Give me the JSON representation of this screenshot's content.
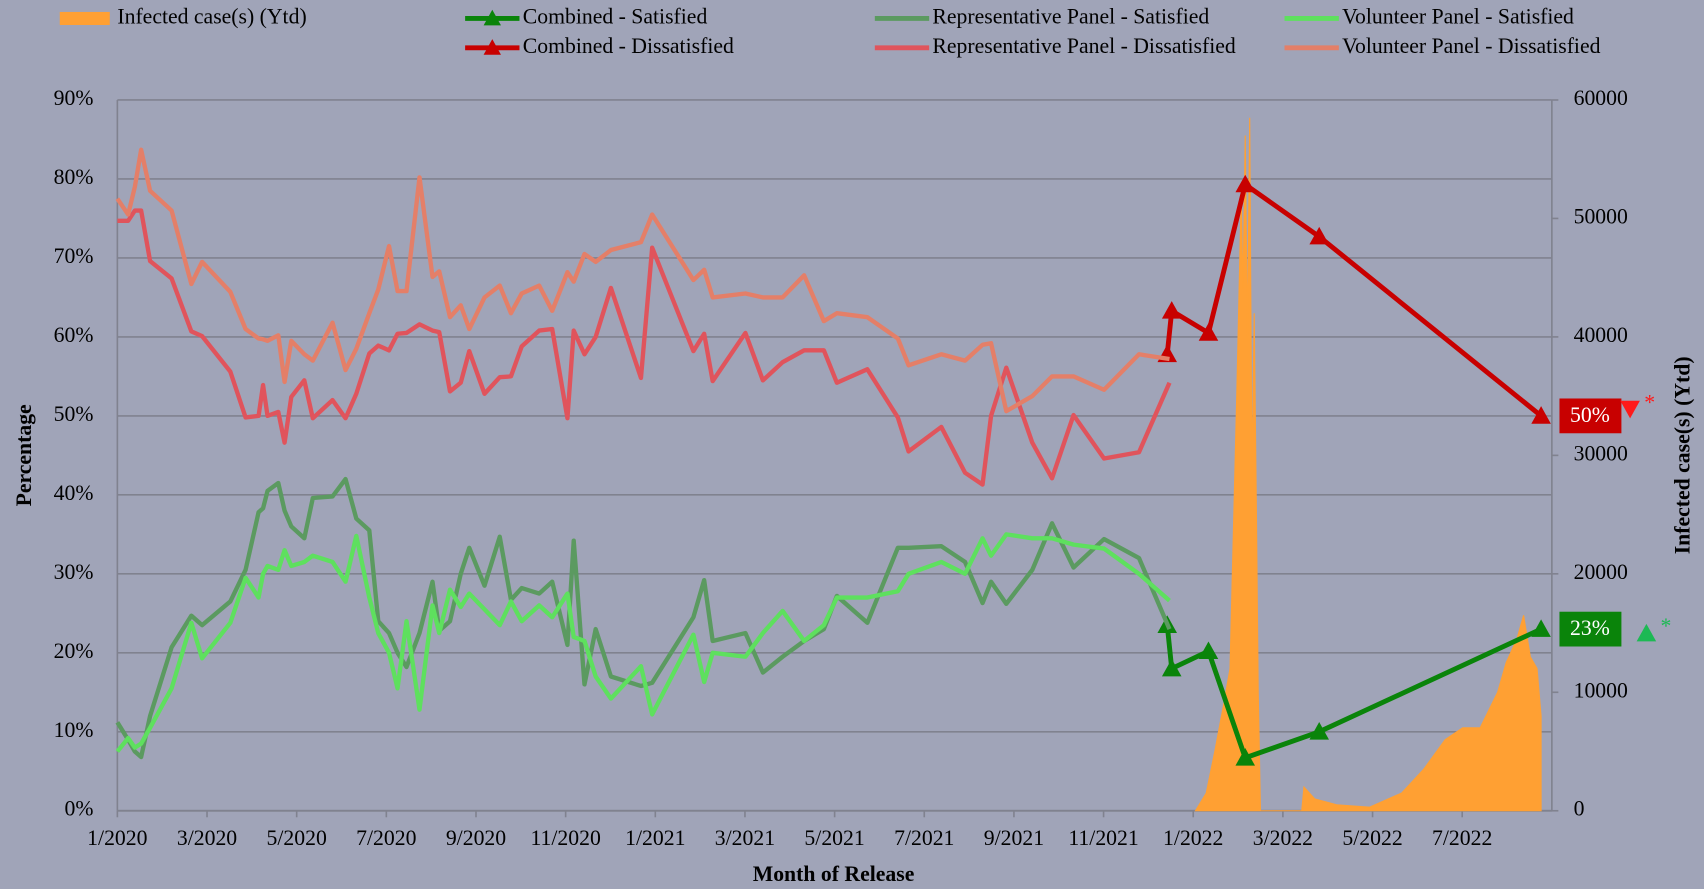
{
  "chart_data": {
    "type": "combo",
    "x_label": "Month of Release",
    "y_label": "Percentage",
    "y2_label": "Infected case(s) (Ytd)",
    "grid": true,
    "xlim": [
      0,
      32
    ],
    "xticks": [
      {
        "value": 0,
        "label": "1/2020"
      },
      {
        "value": 2,
        "label": "3/2020"
      },
      {
        "value": 4,
        "label": "5/2020"
      },
      {
        "value": 6,
        "label": "7/2020"
      },
      {
        "value": 8,
        "label": "9/2020"
      },
      {
        "value": 10,
        "label": "11/2020"
      },
      {
        "value": 12,
        "label": "1/2021"
      },
      {
        "value": 14,
        "label": "3/2021"
      },
      {
        "value": 16,
        "label": "5/2021"
      },
      {
        "value": 18,
        "label": "7/2021"
      },
      {
        "value": 20,
        "label": "9/2021"
      },
      {
        "value": 22,
        "label": "11/2021"
      },
      {
        "value": 24,
        "label": "1/2022"
      },
      {
        "value": 26,
        "label": "3/2022"
      },
      {
        "value": 28,
        "label": "5/2022"
      },
      {
        "value": 30,
        "label": "7/2022"
      }
    ],
    "ylim": [
      0,
      90
    ],
    "yticks": [
      {
        "value": 0,
        "label": "0%"
      },
      {
        "value": 10,
        "label": "10%"
      },
      {
        "value": 20,
        "label": "20%"
      },
      {
        "value": 30,
        "label": "30%"
      },
      {
        "value": 40,
        "label": "40%"
      },
      {
        "value": 50,
        "label": "50%"
      },
      {
        "value": 60,
        "label": "60%"
      },
      {
        "value": 70,
        "label": "70%"
      },
      {
        "value": 80,
        "label": "80%"
      },
      {
        "value": 90,
        "label": "90%"
      }
    ],
    "y2lim": [
      0,
      60000
    ],
    "y2ticks": [
      0,
      10000,
      20000,
      30000,
      40000,
      50000,
      60000
    ],
    "x": [
      0,
      0.24,
      0.39,
      0.53,
      0.73,
      1.21,
      1.65,
      1.89,
      2.52,
      2.86,
      3.15,
      3.25,
      3.35,
      3.59,
      3.73,
      3.88,
      4.17,
      4.36,
      4.8,
      5.09,
      5.33,
      5.62,
      5.82,
      6.06,
      6.25,
      6.45,
      6.74,
      7.03,
      7.18,
      7.42,
      7.66,
      7.85,
      8.19,
      8.53,
      8.78,
      9.02,
      9.41,
      9.7,
      10.04,
      10.18,
      10.42,
      10.67,
      11.01,
      11.68,
      11.93,
      12.85,
      13.09,
      13.28,
      14.01,
      14.4,
      14.84,
      15.32,
      15.76,
      16.05,
      16.73,
      17.41,
      17.65,
      18.38,
      18.91,
      19.3,
      19.49,
      19.83,
      20.41,
      20.85,
      21.33,
      22.01,
      22.79,
      23.47
    ],
    "series": [
      {
        "name": "Infected case(s) (Ytd)",
        "type": "area",
        "axis": "y2",
        "color": "#ffa033",
        "x": [
          24.05,
          24.29,
          24.48,
          24.68,
          24.82,
          24.97,
          25.07,
          25.11,
          25.16,
          25.21,
          25.26,
          25.31,
          25.36,
          25.41,
          25.45,
          25.5,
          26.42,
          26.47,
          26.71,
          27.2,
          27.93,
          28.65,
          29.14,
          29.62,
          30.01,
          30.4,
          30.79,
          30.98,
          31.22,
          31.37,
          31.52,
          31.67,
          31.76
        ],
        "values": [
          0,
          1500,
          5000,
          9000,
          12000,
          35000,
          52000,
          44000,
          57000,
          40000,
          58500,
          28000,
          42000,
          25000,
          10000,
          0,
          0,
          2000,
          1000,
          500,
          300,
          1500,
          3500,
          6000,
          7000,
          7000,
          10000,
          12500,
          14500,
          16500,
          13000,
          12000,
          8000
        ]
      },
      {
        "name": "Combined - Satisfied",
        "type": "line",
        "marker": "triangle",
        "color": "#0a840a",
        "x": [
          23.42,
          23.52,
          24.34,
          25.16,
          26.81,
          31.76
        ],
        "values": [
          23.5,
          18,
          20.2,
          6.7,
          10,
          23
        ],
        "value_labels": [
          null,
          null,
          null,
          null,
          null,
          "23%"
        ]
      },
      {
        "name": "Representative Panel - Satisfied",
        "type": "line",
        "color": "#5b9a60",
        "values": [
          11.2,
          9,
          7.5,
          6.8,
          12,
          20.7,
          24.7,
          23.5,
          26.5,
          30.5,
          37.8,
          38.3,
          40.5,
          41.5,
          38,
          36,
          34.5,
          39.6,
          39.8,
          42,
          37,
          35.5,
          24,
          22.5,
          20,
          18.2,
          22.5,
          29,
          22.8,
          24,
          30,
          33.3,
          28.5,
          34.7,
          26.7,
          28.2,
          27.5,
          29,
          21,
          34.2,
          16,
          23,
          17,
          15.8,
          16.2,
          24.5,
          29.2,
          21.5,
          22.5,
          17.5,
          19.5,
          21.5,
          23,
          27.2,
          23.8,
          33.3,
          33.3,
          33.5,
          31.5,
          26.3,
          29,
          26.2,
          30.5,
          36.4,
          30.8,
          34.4,
          32,
          23
        ]
      },
      {
        "name": "Volunteer Panel - Satisfied",
        "type": "line",
        "color": "#5ee05e",
        "values": [
          7.5,
          9.2,
          8,
          8.5,
          10.5,
          15.5,
          23.8,
          19.3,
          23.8,
          29.5,
          27,
          30,
          31,
          30.5,
          33,
          31,
          31.5,
          32.3,
          31.5,
          29,
          34.8,
          27,
          22.5,
          20,
          15.5,
          24,
          12.8,
          26,
          22.5,
          28,
          25.8,
          27.5,
          25.5,
          23.5,
          26.5,
          24,
          26,
          24.5,
          27.5,
          22,
          21.5,
          17,
          14.2,
          18.3,
          12.2,
          22.3,
          16.3,
          20,
          19.5,
          22.5,
          25.3,
          21.5,
          23.5,
          27,
          27,
          27.8,
          30,
          31.5,
          30,
          34.5,
          32.3,
          35,
          34.5,
          34.5,
          33.7,
          33.2,
          30,
          26.6
        ]
      },
      {
        "name": "Combined - Dissatisfied",
        "type": "line",
        "marker": "triangle",
        "color": "#c80000",
        "x": [
          23.42,
          23.52,
          24.34,
          25.16,
          26.81,
          31.76
        ],
        "values": [
          57.8,
          63.3,
          60.5,
          79.3,
          72.7,
          50
        ],
        "value_labels": [
          null,
          null,
          null,
          null,
          null,
          "50%"
        ]
      },
      {
        "name": "Representative Panel - Dissatisfied",
        "type": "line",
        "color": "#e0545c",
        "values": [
          74.7,
          74.7,
          76,
          76,
          69.6,
          67.4,
          60.7,
          60.1,
          55.6,
          49.8,
          50,
          53.9,
          50,
          50.5,
          46.6,
          52.4,
          54.5,
          49.7,
          52,
          49.7,
          52.8,
          57.9,
          58.9,
          58.3,
          60.4,
          60.5,
          61.6,
          60.8,
          60.6,
          53.1,
          54.2,
          58.2,
          52.8,
          54.9,
          55,
          58.8,
          60.8,
          61,
          49.7,
          60.8,
          57.8,
          60,
          66.2,
          54.8,
          71.3,
          58.2,
          60.4,
          54.4,
          60.5,
          54.5,
          56.8,
          58.3,
          58.3,
          54.2,
          55.9,
          49.8,
          45.5,
          48.6,
          42.8,
          41.3,
          50,
          56.1,
          46.6,
          42.1,
          50.1,
          44.6,
          45.4,
          54.2
        ]
      },
      {
        "name": "Volunteer Panel - Dissatisfied",
        "type": "line",
        "color": "#e47f68",
        "values": [
          77.5,
          75.5,
          79,
          83.7,
          78.5,
          76,
          66.7,
          69.5,
          65.7,
          61,
          59.8,
          59.7,
          59.5,
          60.2,
          54.3,
          59.5,
          57.8,
          57,
          61.8,
          55.8,
          58.5,
          63,
          66,
          71.5,
          65.8,
          65.8,
          80.2,
          67.6,
          68.3,
          62.5,
          64,
          61,
          65,
          66.5,
          63,
          65.5,
          66.5,
          63.3,
          68.2,
          67,
          70.5,
          69.5,
          71,
          72,
          75.5,
          67.2,
          68.5,
          65,
          65.5,
          65,
          65,
          67.8,
          62,
          63,
          62.5,
          59.8,
          56.4,
          57.8,
          57,
          59,
          59.2,
          50.6,
          52.5,
          55,
          55,
          53.3,
          57.8,
          57.2
        ]
      }
    ],
    "annotations": [
      {
        "text": "*",
        "color": "#ff1a1a"
      },
      {
        "text": "*",
        "color": "#1db954"
      }
    ]
  }
}
